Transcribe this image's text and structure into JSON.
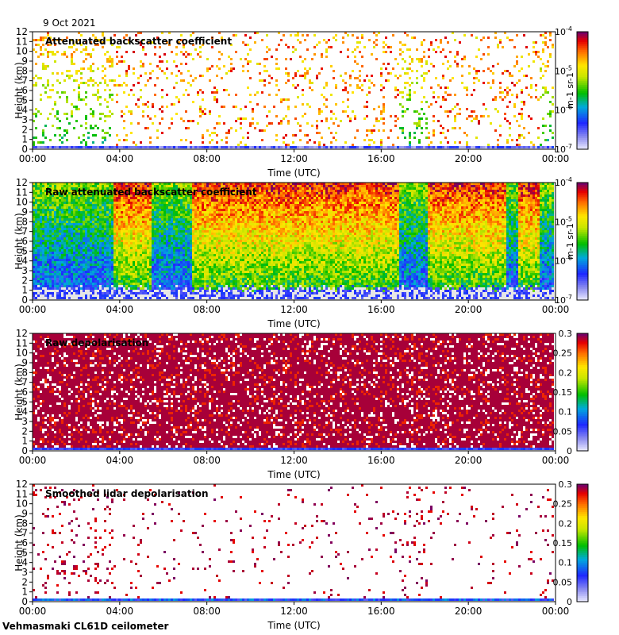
{
  "date": "9 Oct 2021",
  "footer": "Vehmasmaki CL61D ceilometer",
  "chart_data": [
    {
      "type": "heatmap",
      "title": "Attenuated backscatter coefficient",
      "xlabel": "Time (UTC)",
      "ylabel": "Height (km)",
      "x_ticks": [
        "00:00",
        "04:00",
        "08:00",
        "12:00",
        "16:00",
        "20:00",
        "00:00"
      ],
      "y_ticks": [
        "0",
        "1",
        "2",
        "3",
        "4",
        "5",
        "6",
        "7",
        "8",
        "9",
        "10",
        "11",
        "12"
      ],
      "ylim": [
        0,
        12
      ],
      "colorbar": {
        "scale": "log",
        "range": [
          1e-07,
          0.0001
        ],
        "ticks": [
          "10-7",
          "10-6",
          "10-5",
          "10-4"
        ],
        "ticks_base": "10",
        "ticks_exp": [
          "-7",
          "-6",
          "-5",
          "-4"
        ],
        "unit": "m-1 sr-1"
      },
      "colors": {
        "low": "#e0e0ff",
        "mid_low": "#1a30ff",
        "mid": "#00c000",
        "mid_high": "#ffff00",
        "high": "#ff0000",
        "top": "#800060"
      }
    },
    {
      "type": "heatmap",
      "title": "Raw attenuated backscatter coefficient",
      "xlabel": "Time (UTC)",
      "ylabel": "Height (km)",
      "x_ticks": [
        "00:00",
        "04:00",
        "08:00",
        "12:00",
        "16:00",
        "20:00",
        "00:00"
      ],
      "y_ticks": [
        "0",
        "1",
        "2",
        "3",
        "4",
        "5",
        "6",
        "7",
        "8",
        "9",
        "10",
        "11",
        "12"
      ],
      "ylim": [
        0,
        12
      ],
      "colorbar": {
        "scale": "log",
        "range": [
          1e-07,
          0.0001
        ],
        "ticks_exp": [
          "-7",
          "-6",
          "-5",
          "-4"
        ],
        "unit": "m-1 sr-1"
      }
    },
    {
      "type": "heatmap",
      "title": "Raw depolarisation",
      "xlabel": "Time (UTC)",
      "ylabel": "Height (km)",
      "x_ticks": [
        "00:00",
        "04:00",
        "08:00",
        "12:00",
        "16:00",
        "20:00",
        "00:00"
      ],
      "y_ticks": [
        "0",
        "1",
        "2",
        "3",
        "4",
        "5",
        "6",
        "7",
        "8",
        "9",
        "10",
        "11",
        "12"
      ],
      "ylim": [
        0,
        12
      ],
      "colorbar": {
        "scale": "linear",
        "range": [
          0,
          0.3
        ],
        "ticks": [
          "0",
          "0.05",
          "0.1",
          "0.15",
          "0.2",
          "0.25",
          "0.3"
        ]
      }
    },
    {
      "type": "heatmap",
      "title": "Smoothed lidar depolarisation",
      "xlabel": "Time (UTC)",
      "ylabel": "Height (km)",
      "x_ticks": [
        "00:00",
        "04:00",
        "08:00",
        "12:00",
        "16:00",
        "20:00",
        "00:00"
      ],
      "y_ticks": [
        "0",
        "1",
        "2",
        "3",
        "4",
        "5",
        "6",
        "7",
        "8",
        "9",
        "10",
        "11",
        "12"
      ],
      "ylim": [
        0,
        12
      ],
      "colorbar": {
        "scale": "linear",
        "range": [
          0,
          0.3
        ],
        "ticks": [
          "0",
          "0.05",
          "0.1",
          "0.15",
          "0.2",
          "0.25",
          "0.3"
        ]
      }
    }
  ]
}
